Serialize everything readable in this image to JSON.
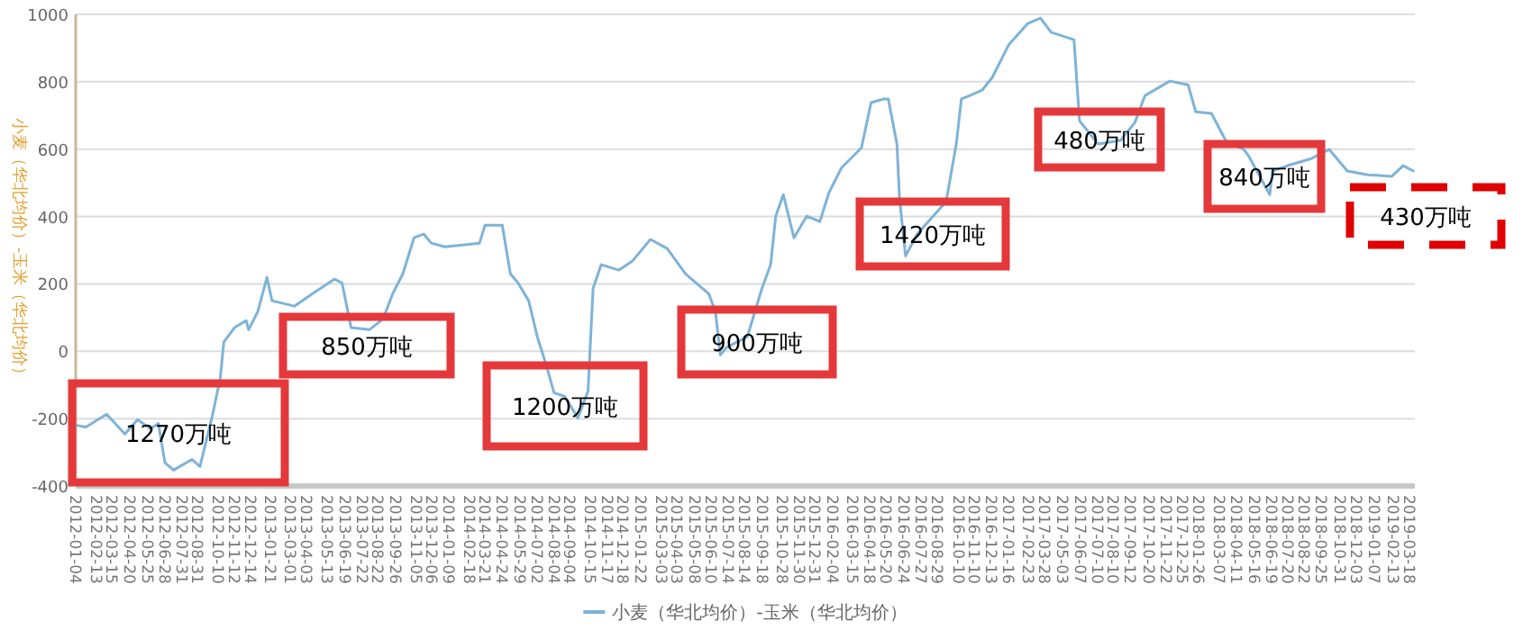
{
  "chart_data": {
    "type": "line",
    "ylabel": "小麦（华北均价）-玉米（华北均价）",
    "x": [
      "2012-01-06",
      "2012-01-24",
      "2012-03-05",
      "2012-04-10",
      "2012-05-05",
      "2012-05-30",
      "2012-06-15",
      "2012-06-28",
      "2012-07-15",
      "2012-08-20",
      "2012-09-05",
      "2012-09-30",
      "2012-10-15",
      "2012-10-22",
      "2012-11-12",
      "2012-12-05",
      "2012-12-10",
      "2012-12-28",
      "2013-01-15",
      "2013-01-25",
      "2013-03-10",
      "2013-04-15",
      "2013-05-28",
      "2013-06-12",
      "2013-06-30",
      "2013-08-05",
      "2013-09-01",
      "2013-09-20",
      "2013-10-10",
      "2013-11-01",
      "2013-11-20",
      "2013-12-05",
      "2014-01-01",
      "2014-03-10",
      "2014-03-21",
      "2014-04-24",
      "2014-05-10",
      "2014-05-25",
      "2014-06-15",
      "2014-07-02",
      "2014-07-20",
      "2014-08-04",
      "2014-08-25",
      "2014-09-20",
      "2014-10-10",
      "2014-10-20",
      "2014-11-05",
      "2014-12-10",
      "2015-01-05",
      "2015-02-10",
      "2015-03-15",
      "2015-04-20",
      "2015-06-05",
      "2015-06-18",
      "2015-06-28",
      "2015-07-10",
      "2015-08-20",
      "2015-09-18",
      "2015-10-05",
      "2015-10-15",
      "2015-10-30",
      "2015-11-20",
      "2015-12-15",
      "2016-01-10",
      "2016-01-28",
      "2016-02-22",
      "2016-04-01",
      "2016-04-20",
      "2016-05-15",
      "2016-05-24",
      "2016-06-10",
      "2016-06-15",
      "2016-06-27",
      "2016-07-20",
      "2016-09-15",
      "2016-10-05",
      "2016-10-15",
      "2016-11-01",
      "2016-11-25",
      "2016-12-15",
      "2017-01-16",
      "2017-02-23",
      "2017-03-20",
      "2017-04-10",
      "2017-05-25",
      "2017-06-05",
      "2017-07-12",
      "2017-08-25",
      "2017-09-22",
      "2017-10-12",
      "2017-11-30",
      "2018-01-05",
      "2018-01-20",
      "2018-02-20",
      "2018-03-20",
      "2018-04-25",
      "2018-05-05",
      "2018-06-15",
      "2018-06-20",
      "2018-07-20",
      "2018-09-05",
      "2018-10-10",
      "2018-11-15",
      "2018-12-25",
      "2019-02-10",
      "2019-03-05",
      "2019-03-25"
    ],
    "series": [
      {
        "name": "小麦（华北均价）-玉米（华北均价）",
        "color": "#7eb3d8",
        "values": [
          -220,
          -225,
          -187,
          -246,
          -203,
          -230,
          -214,
          -331,
          -353,
          -321,
          -342,
          -187,
          -80,
          27,
          70,
          91,
          64,
          118,
          219,
          150,
          134,
          171,
          214,
          203,
          70,
          64,
          96,
          171,
          230,
          337,
          348,
          321,
          310,
          321,
          374,
          374,
          230,
          203,
          150,
          43,
          -43,
          -123,
          -134,
          -198,
          -118,
          187,
          257,
          241,
          267,
          332,
          305,
          230,
          171,
          118,
          -11,
          11,
          43,
          187,
          257,
          401,
          465,
          337,
          401,
          385,
          471,
          545,
          604,
          738,
          749,
          749,
          615,
          455,
          283,
          348,
          444,
          615,
          749,
          759,
          775,
          813,
          909,
          973,
          989,
          947,
          925,
          684,
          615,
          626,
          679,
          759,
          802,
          791,
          711,
          706,
          626,
          599,
          578,
          465,
          535,
          551,
          572,
          599,
          535,
          524,
          519,
          551,
          535
        ]
      }
    ],
    "xlim": [
      "2012-01-04",
      "2019-03-28"
    ],
    "xticks": [
      "2012-01-04",
      "2012-02-13",
      "2012-03-15",
      "2012-04-20",
      "2012-05-25",
      "2012-06-28",
      "2012-07-31",
      "2012-08-31",
      "2012-10-10",
      "2012-11-12",
      "2012-12-14",
      "2013-01-21",
      "2013-03-01",
      "2013-04-03",
      "2013-05-13",
      "2013-06-19",
      "2013-07-22",
      "2013-08-22",
      "2013-09-26",
      "2013-11-05",
      "2013-12-06",
      "2014-01-09",
      "2014-02-18",
      "2014-03-21",
      "2014-04-24",
      "2014-05-29",
      "2014-07-02",
      "2014-08-04",
      "2014-09-04",
      "2014-10-15",
      "2014-11-17",
      "2014-12-18",
      "2015-01-22",
      "2015-03-03",
      "2015-04-03",
      "2015-05-08",
      "2015-06-10",
      "2015-07-14",
      "2015-08-14",
      "2015-09-18",
      "2015-10-28",
      "2015-11-30",
      "2015-12-31",
      "2016-02-04",
      "2016-03-15",
      "2016-04-18",
      "2016-05-20",
      "2016-06-24",
      "2016-07-27",
      "2016-08-29",
      "2016-10-10",
      "2016-11-10",
      "2016-12-13",
      "2017-01-16",
      "2017-02-23",
      "2017-03-28",
      "2017-05-03",
      "2017-06-07",
      "2017-07-10",
      "2017-08-10",
      "2017-09-12",
      "2017-10-20",
      "2017-11-22",
      "2017-12-25",
      "2018-01-26",
      "2018-03-07",
      "2018-04-11",
      "2018-05-16",
      "2018-06-19",
      "2018-07-20",
      "2018-08-22",
      "2018-09-25",
      "2018-10-31",
      "2018-12-03",
      "2019-01-07",
      "2019-02-13",
      "2019-03-18"
    ],
    "ylim": [
      -400,
      1000
    ],
    "yticks": [
      -400,
      -200,
      0,
      200,
      400,
      600,
      800,
      1000
    ],
    "grid": "y",
    "legend": "bottom",
    "marker": "none",
    "annotations": [
      "1270万吨",
      "850万吨",
      "1200万吨",
      "900万吨",
      "1420万吨",
      "480万吨",
      "840万吨",
      "430万吨"
    ]
  }
}
